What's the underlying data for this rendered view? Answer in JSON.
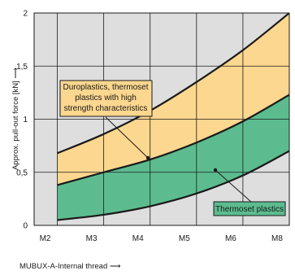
{
  "chart_data": {
    "type": "area",
    "title": "",
    "xlabel": "MUBUX-A-Internal thread ⟶",
    "ylabel": "Approx. pull-out force [kN] ⟶",
    "categories": [
      "M2",
      "M3",
      "M4",
      "M5",
      "M6",
      "M8"
    ],
    "x_range": [
      1.5,
      7
    ],
    "ylim": [
      0,
      2
    ],
    "yticks": [
      0,
      0.5,
      1,
      1.5,
      2
    ],
    "ytick_labels": [
      "0",
      "0,5",
      "1",
      "1,5",
      "2"
    ],
    "grid": true,
    "boundaries": {
      "x": [
        2,
        3,
        4,
        5,
        6,
        7
      ],
      "upper_duroplastics": [
        0.68,
        0.86,
        1.08,
        1.35,
        1.65,
        2.0
      ],
      "middle": [
        0.38,
        0.5,
        0.62,
        0.78,
        0.98,
        1.23
      ],
      "lower_thermoset": [
        0.05,
        0.1,
        0.18,
        0.3,
        0.47,
        0.7
      ]
    },
    "series": [
      {
        "name": "Duroplastics, thermoset plastics with high strength characteristics",
        "color": "#fcd78f"
      },
      {
        "name": "Thermoset plastics",
        "color": "#5cbc8f"
      }
    ],
    "annotations": [
      {
        "lines": [
          "Duroplastics, thermoset",
          "plastics with high",
          "strength characteristics"
        ]
      },
      {
        "lines": [
          "Thermoset plastics"
        ]
      }
    ],
    "colors": {
      "band_upper": "#fcd78f",
      "band_lower": "#5cbc8f",
      "plot_bg": "#dedede",
      "grid": "#1a1a1a",
      "box_upper": "#fcd78f",
      "box_lower": "#5cbc8f"
    }
  }
}
